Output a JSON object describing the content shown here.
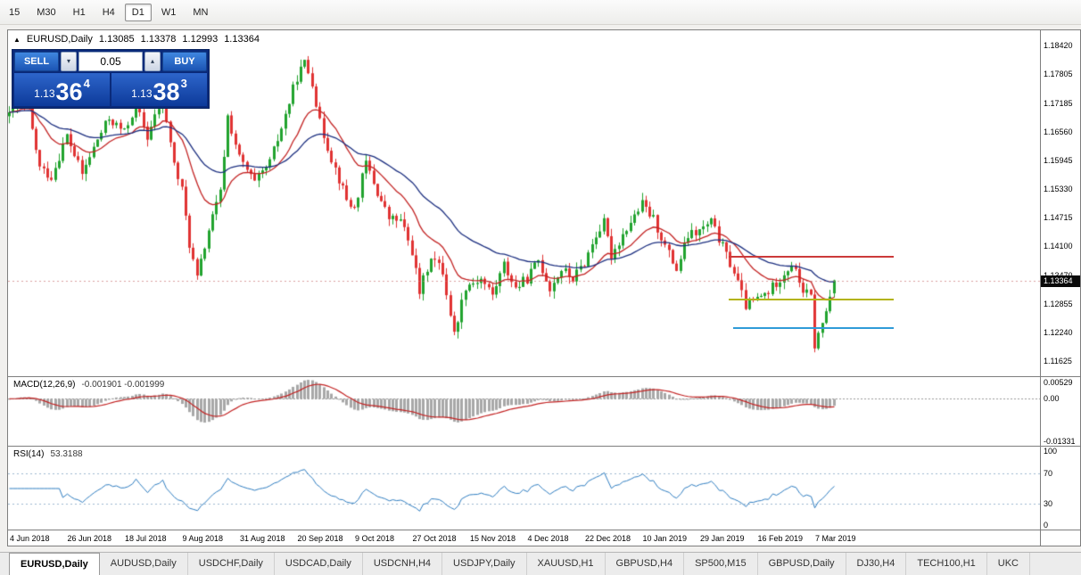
{
  "toolbar": {
    "timeframes": [
      "15",
      "M30",
      "H1",
      "H4",
      "D1",
      "W1",
      "MN"
    ],
    "active": "D1"
  },
  "chart_header": {
    "symbol": "EURUSD,Daily",
    "open": "1.13085",
    "high": "1.13378",
    "low": "1.12993",
    "close": "1.13364"
  },
  "trade_panel": {
    "sell_label": "SELL",
    "buy_label": "BUY",
    "volume": "0.05",
    "sell_price_prefix": "1.13",
    "sell_price_big": "36",
    "sell_price_sup": "4",
    "buy_price_prefix": "1.13",
    "buy_price_big": "38",
    "buy_price_sup": "3"
  },
  "price_axis": {
    "labels": [
      "1.18420",
      "1.17805",
      "1.17185",
      "1.16560",
      "1.15945",
      "1.15330",
      "1.14715",
      "1.14100",
      "1.13470",
      "1.12855",
      "1.12240",
      "1.11625"
    ],
    "current": "1.13364"
  },
  "macd_panel": {
    "label": "MACD(12,26,9)",
    "values": "-0.001901 -0.001999",
    "axis": [
      "0.00529",
      "0.00",
      "-0.01331"
    ]
  },
  "rsi_panel": {
    "label": "RSI(14)",
    "value": "53.3188",
    "axis": [
      "100",
      "70",
      "30",
      "0"
    ]
  },
  "date_axis": [
    {
      "bar": 0,
      "label": "4 Jun 2018"
    },
    {
      "bar": 15,
      "label": "26 Jun 2018"
    },
    {
      "bar": 30,
      "label": "18 Jul 2018"
    },
    {
      "bar": 45,
      "label": "9 Aug 2018"
    },
    {
      "bar": 60,
      "label": "31 Aug 2018"
    },
    {
      "bar": 75,
      "label": "20 Sep 2018"
    },
    {
      "bar": 90,
      "label": "9 Oct 2018"
    },
    {
      "bar": 105,
      "label": "27 Oct 2018"
    },
    {
      "bar": 120,
      "label": "15 Nov 2018"
    },
    {
      "bar": 135,
      "label": "4 Dec 2018"
    },
    {
      "bar": 150,
      "label": "22 Dec 2018"
    },
    {
      "bar": 165,
      "label": "10 Jan 2019"
    },
    {
      "bar": 180,
      "label": "29 Jan 2019"
    },
    {
      "bar": 195,
      "label": "16 Feb 2019"
    },
    {
      "bar": 210,
      "label": "7 Mar 2019"
    }
  ],
  "tabs": [
    {
      "label": "EURUSD,Daily",
      "active": true
    },
    {
      "label": "AUDUSD,Daily",
      "active": false
    },
    {
      "label": "USDCHF,Daily",
      "active": false
    },
    {
      "label": "USDCAD,Daily",
      "active": false
    },
    {
      "label": "USDCNH,H4",
      "active": false
    },
    {
      "label": "USDJPY,Daily",
      "active": false
    },
    {
      "label": "XAUUSD,H1",
      "active": false
    },
    {
      "label": "GBPUSD,H4",
      "active": false
    },
    {
      "label": "SP500,M15",
      "active": false
    },
    {
      "label": "GBPUSD,Daily",
      "active": false
    },
    {
      "label": "DJ30,H4",
      "active": false
    },
    {
      "label": "TECH100,H1",
      "active": false
    },
    {
      "label": "UKC",
      "active": false
    }
  ],
  "chart_data": {
    "type": "candlestick",
    "symbol": "EURUSD",
    "period": "Daily",
    "num_bars": 216,
    "y_range": [
      1.113,
      1.1875
    ],
    "up_color": "#21a32e",
    "down_color": "#e03232",
    "anchors": [
      [
        0,
        1.169
      ],
      [
        3,
        1.1725
      ],
      [
        5,
        1.17
      ],
      [
        8,
        1.1578
      ],
      [
        11,
        1.156
      ],
      [
        15,
        1.1648
      ],
      [
        19,
        1.1565
      ],
      [
        23,
        1.164
      ],
      [
        26,
        1.1685
      ],
      [
        30,
        1.1655
      ],
      [
        33,
        1.1715
      ],
      [
        36,
        1.1645
      ],
      [
        40,
        1.173
      ],
      [
        43,
        1.1585
      ],
      [
        45,
        1.153
      ],
      [
        47,
        1.1415
      ],
      [
        49,
        1.134
      ],
      [
        52,
        1.1445
      ],
      [
        55,
        1.1525
      ],
      [
        57,
        1.169
      ],
      [
        60,
        1.16
      ],
      [
        64,
        1.1545
      ],
      [
        68,
        1.159
      ],
      [
        71,
        1.1665
      ],
      [
        75,
        1.1775
      ],
      [
        77,
        1.1805
      ],
      [
        79,
        1.1765
      ],
      [
        81,
        1.1675
      ],
      [
        84,
        1.16
      ],
      [
        88,
        1.151
      ],
      [
        90,
        1.149
      ],
      [
        93,
        1.159
      ],
      [
        96,
        1.1525
      ],
      [
        99,
        1.147
      ],
      [
        102,
        1.1465
      ],
      [
        105,
        1.14
      ],
      [
        107,
        1.131
      ],
      [
        110,
        1.139
      ],
      [
        113,
        1.1355
      ],
      [
        116,
        1.122
      ],
      [
        119,
        1.1325
      ],
      [
        123,
        1.134
      ],
      [
        126,
        1.1305
      ],
      [
        129,
        1.137
      ],
      [
        132,
        1.132
      ],
      [
        135,
        1.134
      ],
      [
        138,
        1.138
      ],
      [
        141,
        1.132
      ],
      [
        144,
        1.136
      ],
      [
        147,
        1.134
      ],
      [
        150,
        1.1375
      ],
      [
        153,
        1.1435
      ],
      [
        155,
        1.146
      ],
      [
        157,
        1.139
      ],
      [
        161,
        1.145
      ],
      [
        165,
        1.15
      ],
      [
        168,
        1.1468
      ],
      [
        171,
        1.141
      ],
      [
        174,
        1.136
      ],
      [
        177,
        1.1432
      ],
      [
        180,
        1.1442
      ],
      [
        183,
        1.1462
      ],
      [
        186,
        1.1408
      ],
      [
        189,
        1.1355
      ],
      [
        192,
        1.1282
      ],
      [
        195,
        1.1296
      ],
      [
        198,
        1.1312
      ],
      [
        201,
        1.1342
      ],
      [
        204,
        1.1372
      ],
      [
        207,
        1.1315
      ],
      [
        209,
        1.13
      ],
      [
        210,
        1.1196
      ],
      [
        212,
        1.1242
      ],
      [
        214,
        1.1302
      ],
      [
        215,
        1.13364
      ]
    ],
    "last_candle": {
      "open": 1.13085,
      "high": 1.13378,
      "low": 1.12993,
      "close": 1.13364
    },
    "ma": [
      {
        "period": 16,
        "color": "#c32323"
      },
      {
        "period": 40,
        "color": "#1c2f80"
      }
    ],
    "levels": [
      {
        "name": "resistance",
        "price": 1.1388,
        "from_bar": 188,
        "to_bar": 231,
        "color": "#cc3a3a",
        "width": 2
      },
      {
        "name": "support-mid",
        "price": 1.1296,
        "from_bar": 188,
        "to_bar": 231,
        "color": "#b3b313",
        "width": 2
      },
      {
        "name": "support-low",
        "price": 1.1234,
        "from_bar": 189,
        "to_bar": 231,
        "color": "#2f9bd8",
        "width": 2
      }
    ],
    "macd": {
      "fast": 12,
      "slow": 26,
      "signal": 9,
      "range": [
        -0.0146,
        0.0066
      ],
      "hist_color": "#a8a8a8",
      "signal_color": "#c32323"
    },
    "rsi": {
      "period": 14,
      "range": [
        0,
        100
      ],
      "levels": [
        70,
        30
      ],
      "color": "#2f7ec2"
    }
  }
}
